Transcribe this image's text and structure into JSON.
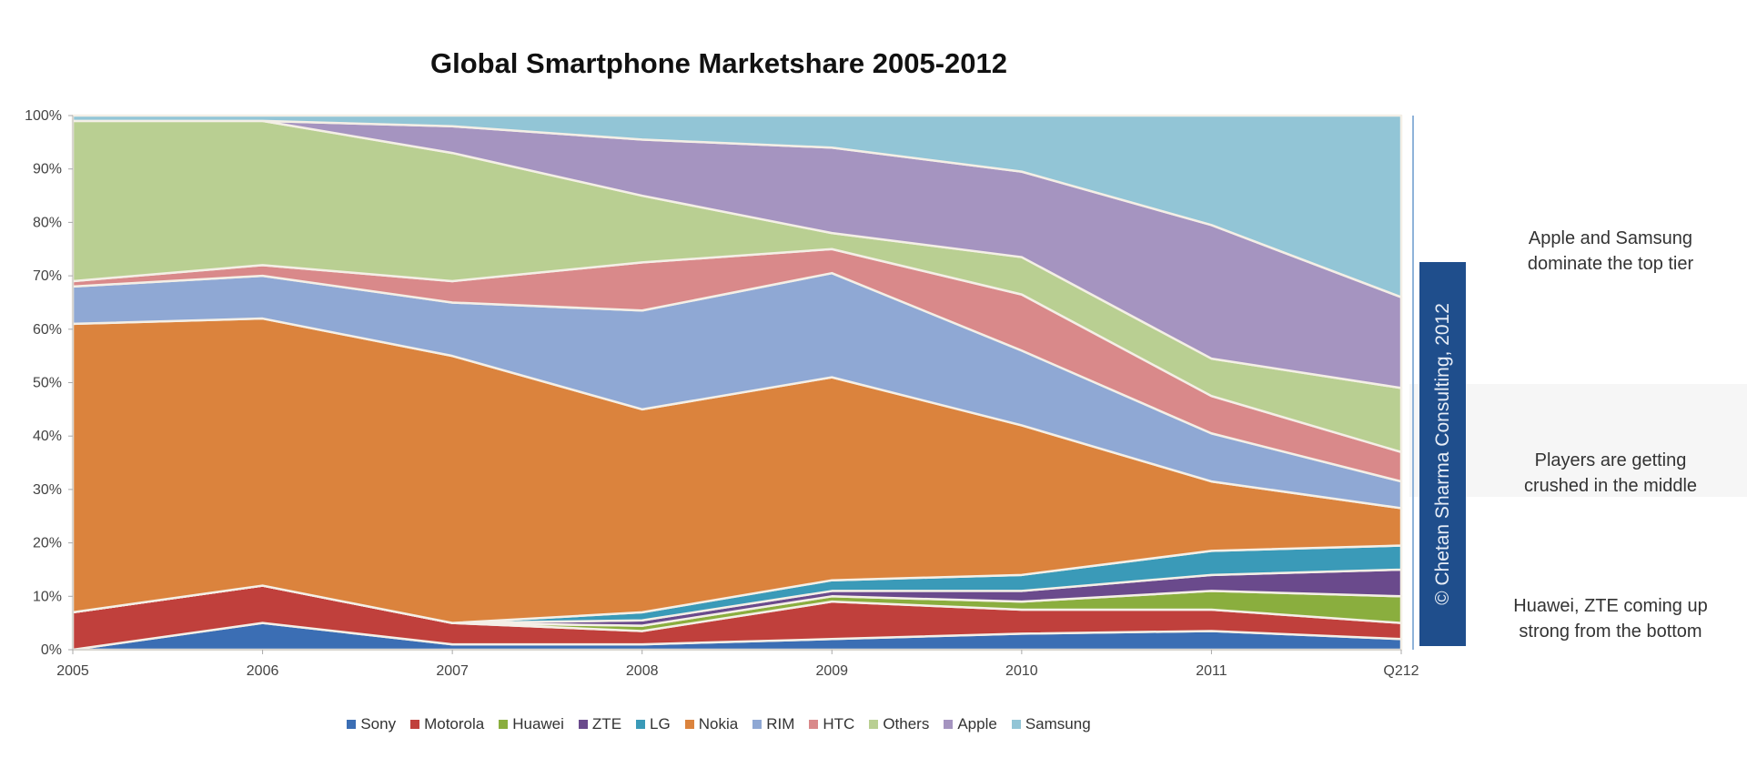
{
  "chart_data": {
    "type": "area",
    "stacked": "percent",
    "title": "Global Smartphone Marketshare 2005-2012",
    "xlabel": "",
    "ylabel": "",
    "ylim": [
      0,
      100
    ],
    "yticks": [
      "0%",
      "10%",
      "20%",
      "30%",
      "40%",
      "50%",
      "60%",
      "70%",
      "80%",
      "90%",
      "100%"
    ],
    "categories": [
      "2005",
      "2006",
      "2007",
      "2008",
      "2009",
      "2010",
      "2011",
      "Q212"
    ],
    "legend_position": "bottom",
    "grid": false,
    "series": [
      {
        "name": "Sony",
        "color": "#3b6eb4",
        "values": [
          0,
          5,
          1,
          1,
          2,
          3,
          3.5,
          2
        ]
      },
      {
        "name": "Motorola",
        "color": "#c0403c",
        "values": [
          7,
          7,
          4,
          2.5,
          7,
          4.5,
          4,
          3
        ]
      },
      {
        "name": "Huawei",
        "color": "#8aae3e",
        "values": [
          0,
          0,
          0,
          1,
          1,
          1.5,
          3.5,
          5
        ]
      },
      {
        "name": "ZTE",
        "color": "#6a4a8c",
        "values": [
          0,
          0,
          0,
          1,
          1,
          2,
          3,
          5
        ]
      },
      {
        "name": "LG",
        "color": "#3a9ab8",
        "values": [
          0,
          0,
          0,
          1.5,
          2,
          3,
          4.5,
          4.5
        ]
      },
      {
        "name": "Nokia",
        "color": "#db833d",
        "values": [
          54,
          50,
          50,
          38,
          38,
          28,
          13,
          7
        ]
      },
      {
        "name": "RIM",
        "color": "#8fa8d4",
        "values": [
          7,
          8,
          10,
          18.5,
          19.5,
          14,
          9,
          5
        ]
      },
      {
        "name": "HTC",
        "color": "#d9898a",
        "values": [
          1,
          2,
          4,
          9,
          4.5,
          10.5,
          7,
          5.5
        ]
      },
      {
        "name": "Others",
        "color": "#b9cf92",
        "values": [
          30,
          27,
          24,
          12.5,
          3,
          7,
          7,
          12
        ]
      },
      {
        "name": "Apple",
        "color": "#a594c0",
        "values": [
          0,
          0,
          5,
          10.5,
          16,
          16,
          25,
          17
        ]
      },
      {
        "name": "Samsung",
        "color": "#92c5d6",
        "values": [
          1,
          1,
          2,
          4.5,
          6,
          10.5,
          20.5,
          34
        ]
      }
    ]
  },
  "annotations": {
    "top": [
      "Apple and Samsung",
      "dominate the top tier"
    ],
    "middle": [
      "Players are getting",
      "crushed in the middle"
    ],
    "bottom": [
      "Huawei, ZTE coming up",
      "strong from the bottom"
    ]
  },
  "credit": "© Chetan Sharma Consulting, 2012"
}
